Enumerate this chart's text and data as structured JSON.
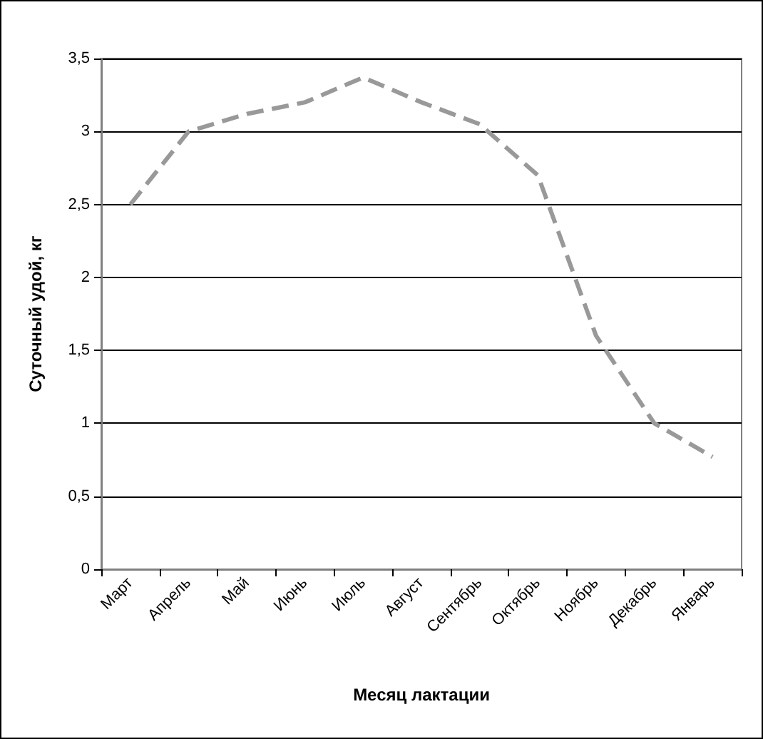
{
  "chart_data": {
    "type": "line",
    "xlabel": "Месяц лактации",
    "ylabel": "Суточный удой, кг",
    "categories": [
      "Март",
      "Апрель",
      "Май",
      "Июнь",
      "Июль",
      "Август",
      "Сентябрь",
      "Октябрь",
      "Ноябрь",
      "Декабрь",
      "Январь"
    ],
    "series": [
      {
        "color": "#999999",
        "values": [
          2.5,
          3.0,
          3.12,
          3.2,
          3.37,
          3.2,
          3.05,
          2.7,
          1.6,
          1.0,
          0.77
        ]
      }
    ],
    "ylim": [
      0,
      3.5
    ],
    "yticks": [
      0,
      {
        "value": 0.5,
        "label": "0,5"
      },
      1,
      {
        "value": 1.5,
        "label": "1,5"
      },
      2,
      {
        "value": 2.5,
        "label": "2,5"
      },
      3,
      {
        "value": 3.5,
        "label": "3,5"
      }
    ],
    "grid": "y",
    "marker": "none",
    "line_style": "dashed"
  }
}
